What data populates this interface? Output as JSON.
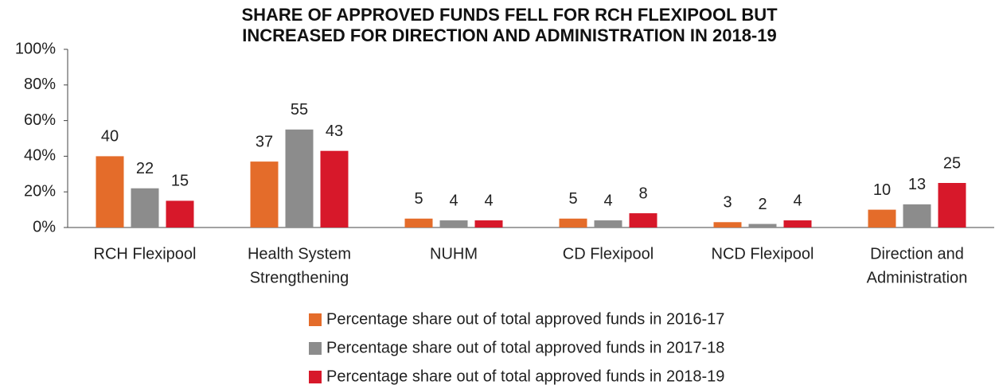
{
  "chart_data": {
    "type": "bar",
    "title": [
      "SHARE OF APPROVED FUNDS FELL FOR RCH FLEXIPOOL BUT",
      "INCREASED FOR DIRECTION AND ADMINISTRATION IN 2018-19"
    ],
    "categories": [
      [
        "RCH Flexipool"
      ],
      [
        "Health System",
        "Strengthening"
      ],
      [
        "NUHM"
      ],
      [
        "CD Flexipool"
      ],
      [
        "NCD Flexipool"
      ],
      [
        "Direction and",
        "Administration"
      ]
    ],
    "series": [
      {
        "name": "Percentage share out of total approved funds in 2016-17",
        "color": "#e46c2a",
        "values": [
          40,
          37,
          5,
          5,
          3,
          10
        ]
      },
      {
        "name": "Percentage share out of total approved funds in 2017-18",
        "color": "#8c8c8c",
        "values": [
          22,
          55,
          4,
          4,
          2,
          13
        ]
      },
      {
        "name": "Percentage share out of total approved funds in 2018-19",
        "color": "#d7182a",
        "values": [
          15,
          43,
          4,
          8,
          4,
          25
        ]
      }
    ],
    "ylim": [
      0,
      100
    ],
    "yticks": [
      {
        "value": 0,
        "label": "0%"
      },
      {
        "value": 20,
        "label": "20%"
      },
      {
        "value": 40,
        "label": "40%"
      },
      {
        "value": 60,
        "label": "60%"
      },
      {
        "value": 80,
        "label": "80%"
      },
      {
        "value": 100,
        "label": "100%"
      }
    ],
    "grid": false,
    "legend": "bottom"
  }
}
